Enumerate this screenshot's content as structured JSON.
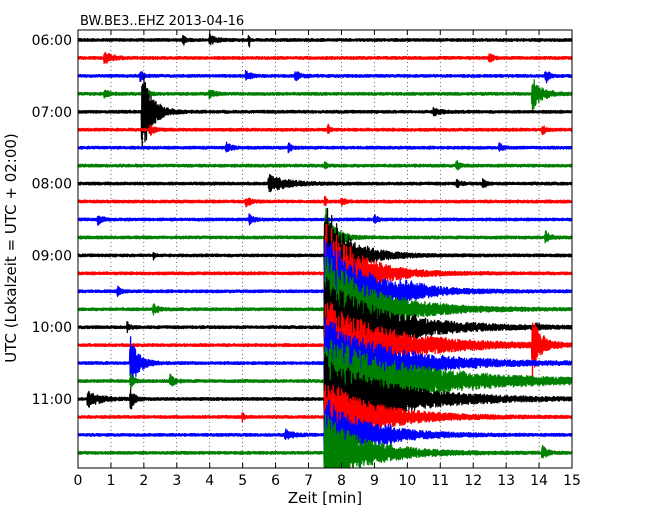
{
  "chart_data": {
    "type": "line",
    "title": "BW.BE3..EHZ 2013-04-16",
    "xlabel": "Zeit  [min]",
    "ylabel": "UTC (Lokalzeit = UTC + 02:00)",
    "xlim": [
      0,
      15
    ],
    "x_ticks": [
      "0",
      "1",
      "2",
      "3",
      "4",
      "5",
      "6",
      "7",
      "8",
      "9",
      "10",
      "11",
      "12",
      "13",
      "14",
      "15"
    ],
    "y_ticks": [
      "06:00",
      "07:00",
      "08:00",
      "09:00",
      "10:00",
      "11:00"
    ],
    "grid": "vertical dotted",
    "colors": [
      "#000000",
      "#ff0000",
      "#0000ff",
      "#008000"
    ],
    "traces": [
      {
        "start": "06:00",
        "bursts": [
          {
            "t": 3.2,
            "amp": 0.35,
            "dur": 0.15
          },
          {
            "t": 4.0,
            "amp": 0.4,
            "dur": 0.4
          },
          {
            "t": 5.2,
            "amp": 0.6,
            "dur": 0.05
          }
        ]
      },
      {
        "start": "06:15",
        "bursts": [
          {
            "t": 0.8,
            "amp": 0.45,
            "dur": 0.5
          },
          {
            "t": 12.5,
            "amp": 0.35,
            "dur": 0.2
          }
        ]
      },
      {
        "start": "06:30",
        "bursts": [
          {
            "t": 1.9,
            "amp": 0.4,
            "dur": 0.2
          },
          {
            "t": 5.1,
            "amp": 0.35,
            "dur": 0.3
          },
          {
            "t": 6.6,
            "amp": 0.35,
            "dur": 0.3
          },
          {
            "t": 14.2,
            "amp": 0.6,
            "dur": 0.2
          }
        ]
      },
      {
        "start": "06:45",
        "bursts": [
          {
            "t": 0.8,
            "amp": 0.35,
            "dur": 0.3
          },
          {
            "t": 2.0,
            "amp": 1.2,
            "dur": 0.2
          },
          {
            "t": 4.0,
            "amp": 0.35,
            "dur": 0.3
          },
          {
            "t": 13.8,
            "amp": 1.2,
            "dur": 0.6
          }
        ]
      },
      {
        "start": "07:00",
        "bursts": [
          {
            "t": 1.95,
            "amp": 3.5,
            "dur": 0.6
          },
          {
            "t": 10.8,
            "amp": 0.35,
            "dur": 0.4
          }
        ]
      },
      {
        "start": "07:15",
        "bursts": [
          {
            "t": 2.2,
            "amp": 0.35,
            "dur": 0.3
          },
          {
            "t": 7.6,
            "amp": 0.35,
            "dur": 0.1
          },
          {
            "t": 14.1,
            "amp": 0.4,
            "dur": 0.2
          }
        ]
      },
      {
        "start": "07:30",
        "bursts": [
          {
            "t": 4.5,
            "amp": 0.35,
            "dur": 0.3
          },
          {
            "t": 6.4,
            "amp": 0.35,
            "dur": 0.2
          },
          {
            "t": 12.8,
            "amp": 0.35,
            "dur": 0.2
          }
        ]
      },
      {
        "start": "07:45",
        "bursts": [
          {
            "t": 7.5,
            "amp": 0.35,
            "dur": 0.1
          },
          {
            "t": 11.5,
            "amp": 0.35,
            "dur": 0.2
          }
        ]
      },
      {
        "start": "08:00",
        "bursts": [
          {
            "t": 5.8,
            "amp": 0.6,
            "dur": 1.2
          },
          {
            "t": 11.5,
            "amp": 0.35,
            "dur": 0.2
          },
          {
            "t": 12.3,
            "amp": 0.35,
            "dur": 0.2
          }
        ]
      },
      {
        "start": "08:15",
        "bursts": [
          {
            "t": 5.1,
            "amp": 0.35,
            "dur": 0.3
          },
          {
            "t": 7.5,
            "amp": 0.35,
            "dur": 0.1
          },
          {
            "t": 8.0,
            "amp": 0.35,
            "dur": 0.2
          }
        ]
      },
      {
        "start": "08:30",
        "bursts": [
          {
            "t": 0.6,
            "amp": 0.35,
            "dur": 0.3
          },
          {
            "t": 5.2,
            "amp": 0.35,
            "dur": 0.3
          },
          {
            "t": 9.0,
            "amp": 0.35,
            "dur": 0.2
          }
        ]
      },
      {
        "start": "08:45",
        "bursts": [
          {
            "t": 7.5,
            "amp": 2.5,
            "dur": 0.6
          },
          {
            "t": 14.2,
            "amp": 0.45,
            "dur": 0.3
          }
        ]
      },
      {
        "start": "09:00",
        "bursts": [
          {
            "t": 2.3,
            "amp": 0.35,
            "dur": 0.1
          },
          {
            "t": 7.5,
            "amp": 4.0,
            "dur": 1.5
          }
        ]
      },
      {
        "start": "09:15",
        "bursts": [
          {
            "t": 7.5,
            "amp": 4.5,
            "dur": 2.0
          }
        ]
      },
      {
        "start": "09:30",
        "bursts": [
          {
            "t": 1.2,
            "amp": 0.4,
            "dur": 0.2
          },
          {
            "t": 7.5,
            "amp": 4.5,
            "dur": 2.5
          },
          {
            "t": 9.8,
            "amp": 0.45,
            "dur": 1.3
          }
        ]
      },
      {
        "start": "09:45",
        "bursts": [
          {
            "t": 7.5,
            "amp": 4.5,
            "dur": 3.0
          },
          {
            "t": 2.3,
            "amp": 0.35,
            "dur": 0.3
          }
        ]
      },
      {
        "start": "10:00",
        "bursts": [
          {
            "t": 7.5,
            "amp": 4.0,
            "dur": 3.5
          },
          {
            "t": 1.5,
            "amp": 0.35,
            "dur": 0.2
          },
          {
            "t": 10.2,
            "amp": 0.35,
            "dur": 0.2
          },
          {
            "t": 13.9,
            "amp": 0.4,
            "dur": 0.2
          }
        ]
      },
      {
        "start": "10:15",
        "bursts": [
          {
            "t": 7.5,
            "amp": 3.5,
            "dur": 4.0
          },
          {
            "t": 13.8,
            "amp": 2.5,
            "dur": 0.5
          }
        ]
      },
      {
        "start": "10:30",
        "bursts": [
          {
            "t": 1.6,
            "amp": 2.0,
            "dur": 0.5
          },
          {
            "t": 7.5,
            "amp": 3.5,
            "dur": 4.0
          }
        ]
      },
      {
        "start": "10:45",
        "bursts": [
          {
            "t": 7.5,
            "amp": 3.5,
            "dur": 5.5
          },
          {
            "t": 1.6,
            "amp": 0.6,
            "dur": 0.2
          },
          {
            "t": 2.8,
            "amp": 0.45,
            "dur": 0.3
          }
        ]
      },
      {
        "start": "11:00",
        "bursts": [
          {
            "t": 0.3,
            "amp": 0.6,
            "dur": 0.8
          },
          {
            "t": 1.6,
            "amp": 1.0,
            "dur": 0.2
          },
          {
            "t": 7.5,
            "amp": 3.5,
            "dur": 4.0
          }
        ]
      },
      {
        "start": "11:15",
        "bursts": [
          {
            "t": 7.5,
            "amp": 3.0,
            "dur": 3.0
          },
          {
            "t": 5.0,
            "amp": 0.35,
            "dur": 0.1
          }
        ]
      },
      {
        "start": "11:30",
        "bursts": [
          {
            "t": 6.3,
            "amp": 0.35,
            "dur": 0.5
          },
          {
            "t": 7.5,
            "amp": 3.0,
            "dur": 2.5
          },
          {
            "t": 9.4,
            "amp": 0.35,
            "dur": 0.2
          }
        ]
      },
      {
        "start": "11:45",
        "bursts": [
          {
            "t": 7.5,
            "amp": 3.0,
            "dur": 2.5
          },
          {
            "t": 14.1,
            "amp": 0.5,
            "dur": 0.3
          }
        ]
      }
    ]
  }
}
